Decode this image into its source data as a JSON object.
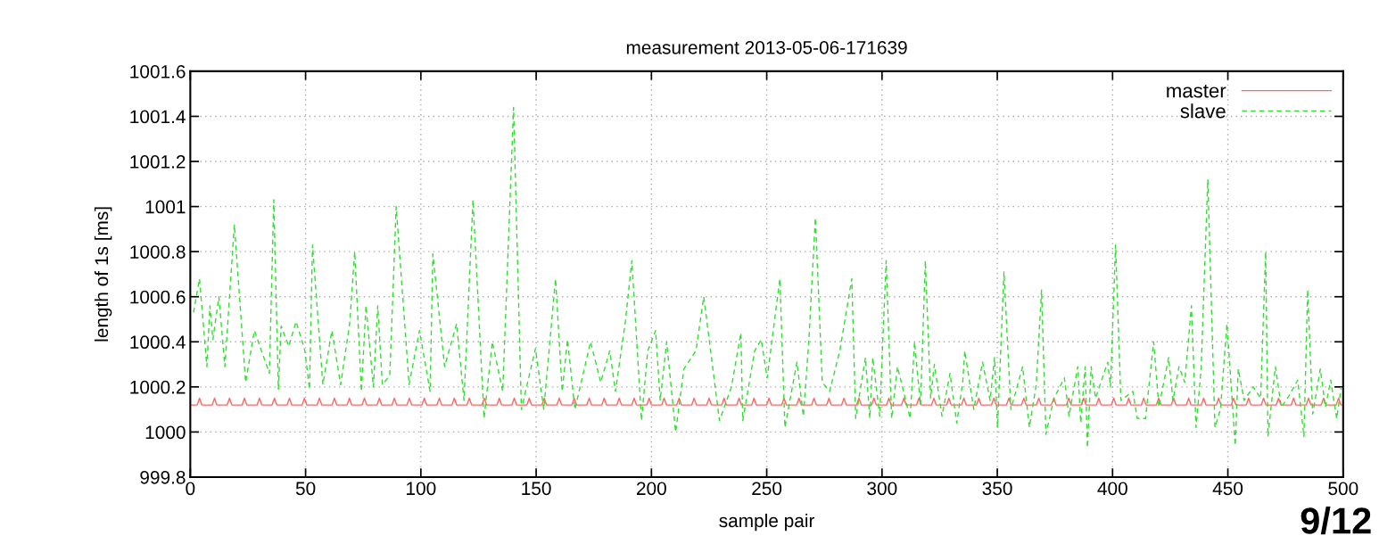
{
  "chart_data": {
    "type": "line",
    "title": "measurement 2013-05-06-171639",
    "xlabel": "sample pair",
    "ylabel": "length of 1s [ms]",
    "xlim": [
      0,
      500
    ],
    "xticks": [
      0,
      50,
      100,
      150,
      200,
      250,
      300,
      350,
      400,
      450,
      500
    ],
    "ylim": [
      999.8,
      1001.6
    ],
    "yticks": [
      999.8,
      1000,
      1000.2,
      1000.4,
      1000.6,
      1000.8,
      1001,
      1001.2,
      1001.4,
      1001.6
    ],
    "grid": true,
    "legend": "top right",
    "marker": "none",
    "annotations": [
      "9/12"
    ],
    "series": [
      {
        "name": "master",
        "color": "#ff6666",
        "line_style": "solid",
        "x": [
          0,
          3,
          4,
          5,
          9.5,
          10.5,
          11.5,
          16,
          17,
          18,
          22.5,
          23.5,
          24.5,
          29,
          30,
          31,
          35.5,
          36.5,
          37.5,
          42,
          43,
          44,
          48.5,
          49.5,
          50.5,
          55,
          56,
          57,
          61.5,
          62.5,
          63.5,
          68,
          69,
          70,
          74.5,
          75.5,
          76.5,
          81,
          82,
          83,
          87.5,
          88.5,
          89.5,
          94,
          95,
          96,
          100.5,
          101.5,
          102.5,
          107,
          108,
          109,
          113.5,
          114.5,
          115.5,
          120,
          121,
          122,
          126.5,
          127.5,
          128.5,
          133,
          134,
          135,
          139.5,
          140.5,
          141.5,
          146,
          147,
          148,
          152.5,
          153.5,
          154.5,
          159,
          160,
          161,
          165.5,
          166.5,
          167.5,
          172,
          173,
          174,
          178.5,
          179.5,
          180.5,
          185,
          186,
          187,
          191.5,
          192.5,
          193.5,
          198,
          199,
          200,
          204.5,
          205.5,
          206.5,
          211,
          212,
          213,
          217.5,
          218.5,
          219.5,
          224,
          225,
          226,
          230.5,
          231.5,
          232.5,
          237,
          238,
          239,
          243.5,
          244.5,
          245.5,
          250,
          251,
          252,
          256.5,
          257.5,
          258.5,
          263,
          264,
          265,
          269.5,
          270.5,
          271.5,
          276,
          277,
          278,
          282.5,
          283.5,
          284.5,
          289,
          290,
          291,
          295.5,
          296.5,
          297.5,
          302,
          303,
          304,
          308.5,
          309.5,
          310.5,
          315,
          316,
          317,
          321.5,
          322.5,
          323.5,
          328,
          329,
          330,
          334.5,
          335.5,
          336.5,
          341,
          342,
          343,
          347.5,
          348.5,
          349.5,
          354,
          355,
          356,
          360.5,
          361.5,
          362.5,
          367,
          368,
          369,
          373.5,
          374.5,
          375.5,
          380,
          381,
          382,
          386.5,
          387.5,
          388.5,
          393,
          394,
          395,
          399.5,
          400.5,
          401.5,
          406,
          407,
          408,
          412.5,
          413.5,
          414.5,
          419,
          420,
          421,
          425.5,
          426.5,
          427.5,
          432,
          433,
          434,
          438.5,
          439.5,
          440.5,
          445,
          446,
          447,
          451.5,
          452.5,
          453.5,
          458,
          459,
          460,
          464.5,
          465.5,
          466.5,
          471,
          472,
          473,
          477.5,
          478.5,
          479.5,
          484,
          485,
          486,
          490.5,
          491.5,
          492.5,
          497,
          498,
          499,
          500
        ],
        "values": [
          1000.12,
          1000.12,
          1000.15,
          1000.12,
          1000.12,
          1000.15,
          1000.12,
          1000.12,
          1000.15,
          1000.12,
          1000.12,
          1000.15,
          1000.12,
          1000.12,
          1000.15,
          1000.12,
          1000.12,
          1000.15,
          1000.12,
          1000.12,
          1000.15,
          1000.12,
          1000.12,
          1000.15,
          1000.12,
          1000.12,
          1000.15,
          1000.12,
          1000.12,
          1000.15,
          1000.12,
          1000.12,
          1000.15,
          1000.12,
          1000.12,
          1000.15,
          1000.12,
          1000.12,
          1000.15,
          1000.12,
          1000.12,
          1000.15,
          1000.12,
          1000.12,
          1000.15,
          1000.12,
          1000.12,
          1000.15,
          1000.12,
          1000.12,
          1000.15,
          1000.12,
          1000.12,
          1000.15,
          1000.12,
          1000.12,
          1000.15,
          1000.12,
          1000.12,
          1000.15,
          1000.12,
          1000.12,
          1000.15,
          1000.12,
          1000.12,
          1000.15,
          1000.12,
          1000.12,
          1000.15,
          1000.12,
          1000.12,
          1000.15,
          1000.12,
          1000.12,
          1000.15,
          1000.12,
          1000.12,
          1000.15,
          1000.12,
          1000.12,
          1000.15,
          1000.12,
          1000.12,
          1000.15,
          1000.12,
          1000.12,
          1000.15,
          1000.12,
          1000.12,
          1000.15,
          1000.12,
          1000.12,
          1000.15,
          1000.12,
          1000.12,
          1000.15,
          1000.12,
          1000.12,
          1000.15,
          1000.12,
          1000.12,
          1000.15,
          1000.12,
          1000.12,
          1000.15,
          1000.12,
          1000.12,
          1000.15,
          1000.12,
          1000.12,
          1000.15,
          1000.12,
          1000.12,
          1000.15,
          1000.12,
          1000.12,
          1000.15,
          1000.12,
          1000.12,
          1000.15,
          1000.12,
          1000.12,
          1000.15,
          1000.12,
          1000.12,
          1000.15,
          1000.12,
          1000.12,
          1000.15,
          1000.12,
          1000.12,
          1000.15,
          1000.12,
          1000.12,
          1000.15,
          1000.12,
          1000.12,
          1000.15,
          1000.12,
          1000.12,
          1000.15,
          1000.12,
          1000.12,
          1000.15,
          1000.12,
          1000.12,
          1000.15,
          1000.12,
          1000.12,
          1000.15,
          1000.12,
          1000.12,
          1000.15,
          1000.12,
          1000.12,
          1000.15,
          1000.12,
          1000.12,
          1000.15,
          1000.12,
          1000.12,
          1000.15,
          1000.12,
          1000.12,
          1000.15,
          1000.12,
          1000.12,
          1000.15,
          1000.12,
          1000.12,
          1000.15,
          1000.12,
          1000.12,
          1000.15,
          1000.12,
          1000.12,
          1000.15,
          1000.12,
          1000.12,
          1000.15,
          1000.12,
          1000.12,
          1000.15,
          1000.12,
          1000.12,
          1000.15,
          1000.12,
          1000.12,
          1000.15,
          1000.12,
          1000.12,
          1000.15,
          1000.12,
          1000.12,
          1000.15,
          1000.12,
          1000.12,
          1000.15,
          1000.12,
          1000.12,
          1000.15,
          1000.12,
          1000.12,
          1000.15,
          1000.12,
          1000.12,
          1000.15,
          1000.12,
          1000.12,
          1000.15,
          1000.12,
          1000.12,
          1000.15,
          1000.12,
          1000.12,
          1000.15,
          1000.12,
          1000.12,
          1000.15,
          1000.12,
          1000.12,
          1000.15,
          1000.12,
          1000.12,
          1000.15,
          1000.12,
          1000.12,
          1000.15,
          1000.12,
          1000.12,
          1000.15,
          1000.12,
          1000.12
        ]
      },
      {
        "name": "slave",
        "color": "#33dd33",
        "line_style": "dashed",
        "x": [
          1.4,
          4,
          7.2,
          8.5,
          9.8,
          12.4,
          15,
          19.1,
          24,
          27.8,
          34.3,
          36.2,
          38.2,
          39.4,
          42.7,
          45.9,
          49.7,
          51.7,
          53,
          57.5,
          61.4,
          65.2,
          69.1,
          71.3,
          74.2,
          76.2,
          79.4,
          81.3,
          83.3,
          86.5,
          89.3,
          94.9,
          99.4,
          104,
          105.2,
          110.3,
          115.5,
          118.7,
          122.6,
          127.4,
          131,
          135.5,
          140.2,
          143.6,
          149.7,
          153.3,
          158.4,
          161.3,
          163.6,
          166.8,
          173.6,
          178,
          181.9,
          184.4,
          188.7,
          191.5,
          195.7,
          198.4,
          201.8,
          203.8,
          206.6,
          210.5,
          214.1,
          219.3,
          222.7,
          229.5,
          234.7,
          238.8,
          239.6,
          244.8,
          247.6,
          250.2,
          255.7,
          257.9,
          263.1,
          265.9,
          268.3,
          271.1,
          274.1,
          277.3,
          281.7,
          286.9,
          288.6,
          292.8,
          294.7,
          296,
          299,
          301.8,
          304.2,
          306.7,
          312.2,
          314.1,
          316.7,
          318.8,
          321.1,
          322.7,
          326,
          329.5,
          332.4,
          335,
          335.9,
          339.8,
          343.6,
          346.9,
          348.8,
          350.1,
          352.9,
          355.9,
          361,
          363.9,
          366.9,
          369.2,
          371.1,
          374.6,
          379.1,
          381.1,
          384.9,
          386.2,
          388.1,
          389.1,
          390.7,
          392.6,
          397.9,
          399.1,
          401.3,
          403.6,
          408.8,
          410.7,
          414.3,
          417.8,
          420.1,
          424.3,
          426.2,
          428.8,
          431.3,
          434.2,
          436.2,
          438.4,
          441.3,
          444.4,
          446.8,
          449.6,
          453.2,
          454.5,
          457.1,
          461,
          464.2,
          466.4,
          467.4,
          470.6,
          473.2,
          476.5,
          480.3,
          483,
          484.6,
          486.8,
          490.1,
          492.3,
          494.6,
          497.2,
          499.2
        ],
        "values": [
          1000.53,
          1000.68,
          1000.29,
          1000.56,
          1000.41,
          1000.6,
          1000.29,
          1000.92,
          1000.22,
          1000.45,
          1000.26,
          1001.03,
          1000.19,
          1000.47,
          1000.38,
          1000.49,
          1000.36,
          1000.19,
          1000.83,
          1000.21,
          1000.45,
          1000.21,
          1000.48,
          1000.8,
          1000.18,
          1000.56,
          1000.2,
          1000.56,
          1000.21,
          1000.25,
          1001.0,
          1000.21,
          1000.45,
          1000.18,
          1000.79,
          1000.29,
          1000.48,
          1000.14,
          1001.03,
          1000.06,
          1000.4,
          1000.18,
          1001.44,
          1000.1,
          1000.37,
          1000.1,
          1000.68,
          1000.18,
          1000.41,
          1000.1,
          1000.4,
          1000.22,
          1000.36,
          1000.18,
          1000.49,
          1000.76,
          1000.05,
          1000.36,
          1000.45,
          1000.14,
          1000.4,
          1000.0,
          1000.28,
          1000.36,
          1000.6,
          1000.05,
          1000.2,
          1000.44,
          1000.05,
          1000.36,
          1000.41,
          1000.24,
          1000.68,
          1000.02,
          1000.31,
          1000.07,
          1000.41,
          1000.95,
          1000.22,
          1000.18,
          1000.36,
          1000.68,
          1000.06,
          1000.33,
          1000.06,
          1000.33,
          1000.07,
          1000.76,
          1000.06,
          1000.29,
          1000.06,
          1000.4,
          1000.12,
          1000.76,
          1000.15,
          1000.3,
          1000.07,
          1000.26,
          1000.04,
          1000.22,
          1000.36,
          1000.1,
          1000.31,
          1000.14,
          1000.33,
          1000.02,
          1000.71,
          1000.1,
          1000.29,
          1000.02,
          1000.21,
          1000.63,
          999.99,
          1000.15,
          1000.24,
          1000.07,
          1000.29,
          1000.04,
          1000.29,
          999.93,
          1000.29,
          1000.15,
          1000.31,
          1000.2,
          1000.83,
          1000.14,
          1000.18,
          1000.06,
          1000.06,
          1000.4,
          1000.11,
          1000.33,
          1000.14,
          1000.29,
          1000.22,
          1000.56,
          1000.02,
          1000.28,
          1001.12,
          1000.02,
          1000.1,
          1000.48,
          999.94,
          1000.28,
          1000.14,
          1000.2,
          1000.15,
          1000.8,
          999.98,
          1000.29,
          1000.11,
          1000.16,
          1000.23,
          999.98,
          1000.63,
          1000.08,
          1000.28,
          1000.11,
          1000.23,
          1000.06,
          1000.2
        ]
      }
    ]
  }
}
